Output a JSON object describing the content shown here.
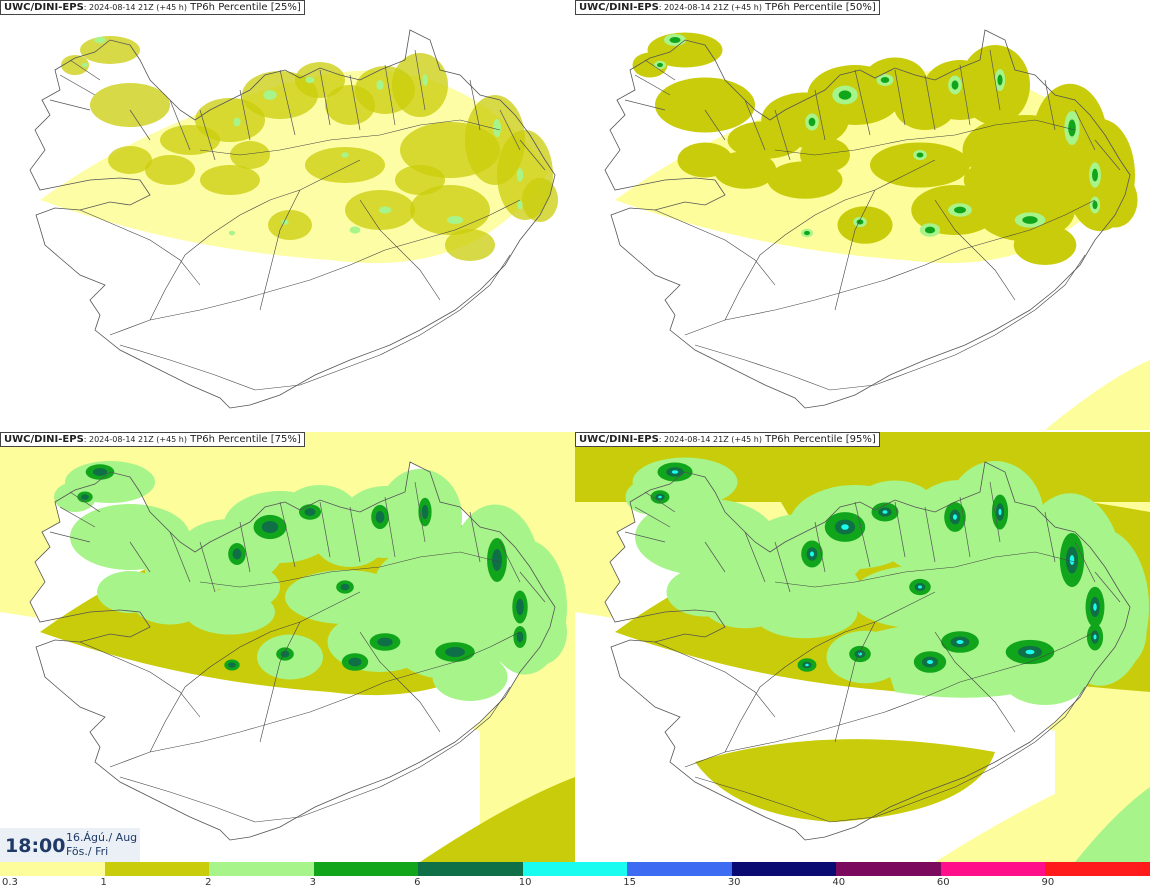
{
  "panels": [
    {
      "model": "UWC/DINI-EPS",
      "meta": ": 2024-08-14 21Z (+45 h)",
      "product": "TP6h Percentile [25%]",
      "level": 0
    },
    {
      "model": "UWC/DINI-EPS",
      "meta": ": 2024-08-14 21Z (+45 h)",
      "product": "TP6h Percentile [50%]",
      "level": 1
    },
    {
      "model": "UWC/DINI-EPS",
      "meta": ": 2024-08-14 21Z (+45 h)",
      "product": "TP6h Percentile [75%]",
      "level": 2
    },
    {
      "model": "UWC/DINI-EPS",
      "meta": ": 2024-08-14 21Z (+45 h)",
      "product": "TP6h Percentile [95%]",
      "level": 3
    }
  ],
  "valid_time": {
    "time": "18:00",
    "date_line1": "16.Ágú./ Aug",
    "date_line2": "Fös./ Fri"
  },
  "legend": {
    "ticks": [
      "0.3",
      "1",
      "2",
      "3",
      "6",
      "10",
      "15",
      "30",
      "40",
      "60",
      "90"
    ],
    "colors": [
      "#fdfd9b",
      "#c9cc0a",
      "#a7f48a",
      "#11a51c",
      "#0f7048",
      "#1bfcf1",
      "#3d6cf3",
      "#0a0a73",
      "#7b0a5e",
      "#ff0f8a",
      "#ff1b1b"
    ]
  },
  "colors": {
    "land_outline": "#555555",
    "roads": "#444444"
  }
}
